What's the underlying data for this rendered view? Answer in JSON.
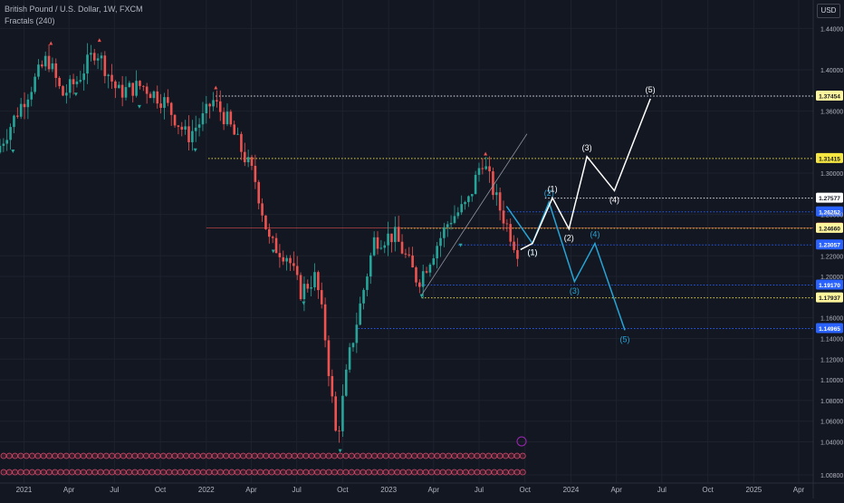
{
  "header": {
    "title": "British Pound / U.S. Dollar, 1W, FXCM",
    "indicator": "Fractals (240)",
    "currency": "USD"
  },
  "colors": {
    "background": "#131722",
    "grid": "#1e222d",
    "up": "#26a69a",
    "down": "#ef5350",
    "white_wave": "#ffffff",
    "blue_wave": "#26a4d6",
    "yellow_line": "#f5e642",
    "blue_line": "#2962ff",
    "fractal_up": "#ef5350",
    "fractal_down": "#26a69a"
  },
  "chart_data": {
    "type": "candlestick",
    "y_axis": {
      "range": [
        0.99,
        1.46
      ],
      "ticks": [
        "1.44000",
        "1.40000",
        "1.36000",
        "1.30000",
        "1.26000",
        "1.22000",
        "1.20000",
        "1.16000",
        "1.14000",
        "1.12000",
        "1.10000",
        "1.08000",
        "1.06000",
        "1.04000",
        "1.00800"
      ],
      "tick_values": [
        1.44,
        1.4,
        1.36,
        1.3,
        1.26,
        1.22,
        1.2,
        1.16,
        1.14,
        1.12,
        1.1,
        1.08,
        1.06,
        1.04,
        1.008
      ]
    },
    "x_axis": {
      "labels": [
        "2021",
        "Apr",
        "Jul",
        "Oct",
        "2022",
        "Apr",
        "Jul",
        "Oct",
        "2023",
        "Apr",
        "Jul",
        "Oct",
        "2024",
        "Apr",
        "Jul",
        "Oct",
        "2025",
        "Apr"
      ],
      "label_dates": [
        "2021-01-01",
        "2021-04-01",
        "2021-07-01",
        "2021-10-01",
        "2022-01-01",
        "2022-04-01",
        "2022-07-01",
        "2022-10-01",
        "2023-01-01",
        "2023-04-01",
        "2023-07-01",
        "2023-10-01",
        "2024-01-01",
        "2024-04-01",
        "2024-07-01",
        "2024-10-01",
        "2025-01-01",
        "2025-04-01"
      ],
      "range": [
        "2020-11-14",
        "2025-04-30"
      ]
    },
    "price_path": [
      [
        "2020-11-14",
        1.32
      ],
      [
        "2021-01-01",
        1.365
      ],
      [
        "2021-02-24",
        1.412
      ],
      [
        "2021-03-25",
        1.375
      ],
      [
        "2021-04-25",
        1.39
      ],
      [
        "2021-06-01",
        1.42
      ],
      [
        "2021-07-15",
        1.378
      ],
      [
        "2021-09-01",
        1.385
      ],
      [
        "2021-10-15",
        1.37
      ],
      [
        "2021-12-01",
        1.335
      ],
      [
        "2022-01-05",
        1.355
      ],
      [
        "2022-01-20",
        1.371
      ],
      [
        "2022-02-20",
        1.35
      ],
      [
        "2022-04-15",
        1.295
      ],
      [
        "2022-05-15",
        1.232
      ],
      [
        "2022-06-20",
        1.22
      ],
      [
        "2022-07-15",
        1.185
      ],
      [
        "2022-08-15",
        1.2
      ],
      [
        "2022-09-01",
        1.15
      ],
      [
        "2022-09-26",
        1.04
      ],
      [
        "2022-10-20",
        1.12
      ],
      [
        "2022-12-10",
        1.235
      ],
      [
        "2023-01-20",
        1.24
      ],
      [
        "2023-03-08",
        1.195
      ],
      [
        "2023-05-10",
        1.255
      ],
      [
        "2023-06-15",
        1.27
      ],
      [
        "2023-07-14",
        1.314
      ],
      [
        "2023-08-15",
        1.27
      ],
      [
        "2023-09-22",
        1.226
      ]
    ],
    "fractals_up": [
      [
        "2021-02-24",
        1.425
      ],
      [
        "2021-06-01",
        1.428
      ],
      [
        "2022-01-20",
        1.382
      ],
      [
        "2023-07-14",
        1.318
      ]
    ],
    "fractals_down": [
      [
        "2020-12-10",
        1.322
      ],
      [
        "2021-04-15",
        1.377
      ],
      [
        "2021-08-20",
        1.365
      ],
      [
        "2021-12-10",
        1.323
      ],
      [
        "2022-05-15",
        1.225
      ],
      [
        "2022-07-15",
        1.175
      ],
      [
        "2022-09-26",
        1.032
      ],
      [
        "2023-03-08",
        1.182
      ],
      [
        "2023-05-25",
        1.231
      ]
    ],
    "horizontal_levels": [
      {
        "value": 1.37454,
        "label": "1.37454",
        "color": "#ffffff",
        "tag": "#fff59d",
        "start": "2022-01-20",
        "style": "dotted"
      },
      {
        "value": 1.31415,
        "label": "1.31415",
        "color": "#f5e642",
        "tag": "#f5e642",
        "start": "2022-01-05",
        "style": "dotted"
      },
      {
        "value": 1.27577,
        "label": "1.27577",
        "color": "#ffffff",
        "tag": "#ffffff",
        "start": "2023-11-10",
        "style": "dotted"
      },
      {
        "value": 1.26252,
        "label": "1.26252",
        "color": "#2962ff",
        "tag": "#2962ff",
        "start": "2023-08-20",
        "style": "dotted"
      },
      {
        "value": 1.24682,
        "label": "1.24682",
        "color": "#ef5350",
        "tag": "#ef5350",
        "start": "2022-01-01",
        "style": "solid-thin"
      },
      {
        "value": 1.2466,
        "label": "1.24660",
        "color": "#f5e642",
        "tag": "#fff59d",
        "start": "2023-01-20",
        "style": "dotted"
      },
      {
        "value": 1.23057,
        "label": "1.23057",
        "color": "#2962ff",
        "tag": "#2962ff",
        "start": "2023-05-20",
        "style": "dotted"
      },
      {
        "value": 1.1917,
        "label": "1.19170",
        "color": "#2962ff",
        "tag": "#2962ff",
        "start": "2023-03-01",
        "style": "dotted"
      },
      {
        "value": 1.17937,
        "label": "1.17937",
        "color": "#f5e642",
        "tag": "#fff59d",
        "start": "2023-03-08",
        "style": "dotted"
      },
      {
        "value": 1.14965,
        "label": "1.14965",
        "color": "#2962ff",
        "tag": "#2962ff",
        "start": "2022-11-01",
        "style": "dotted"
      }
    ],
    "white_wave": [
      {
        "x": "2023-09-22",
        "y": 1.226,
        "label": ""
      },
      {
        "x": "2023-10-16",
        "y": 1.232,
        "label": "(1)"
      },
      {
        "x": "2023-11-25",
        "y": 1.276,
        "label": "(1)"
      },
      {
        "x": "2023-12-28",
        "y": 1.246,
        "label": "(2)"
      },
      {
        "x": "2024-02-02",
        "y": 1.316,
        "label": "(3)"
      },
      {
        "x": "2024-03-28",
        "y": 1.283,
        "label": "(4)"
      },
      {
        "x": "2024-06-08",
        "y": 1.372,
        "label": "(5)"
      }
    ],
    "blue_wave": [
      {
        "x": "2023-08-25",
        "y": 1.268,
        "label": ""
      },
      {
        "x": "2023-10-16",
        "y": 1.232,
        "label": "(1)"
      },
      {
        "x": "2023-11-18",
        "y": 1.272,
        "label": "(2)"
      },
      {
        "x": "2024-01-08",
        "y": 1.195,
        "label": "(3)"
      },
      {
        "x": "2024-02-18",
        "y": 1.232,
        "label": "(4)"
      },
      {
        "x": "2024-04-18",
        "y": 1.148,
        "label": "(5)"
      }
    ],
    "trend_line": [
      [
        "2023-03-08",
        1.182
      ],
      [
        "2023-10-05",
        1.338
      ]
    ],
    "session_icon_rows": 2
  }
}
